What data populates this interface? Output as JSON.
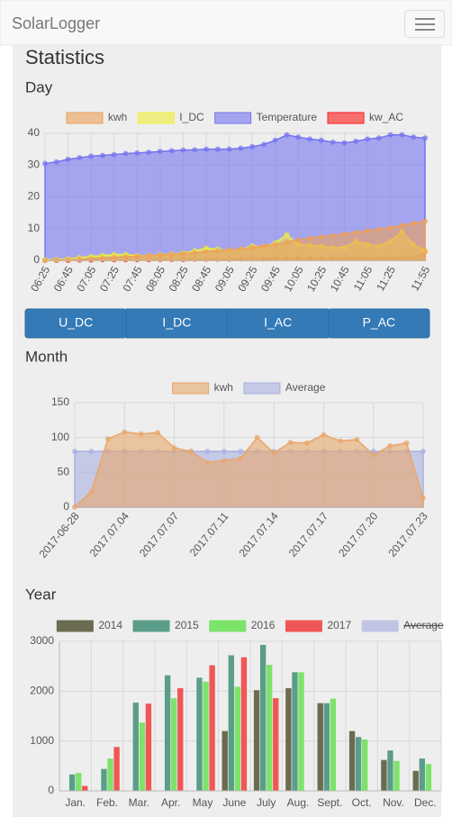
{
  "navbar": {
    "brand": "SolarLogger"
  },
  "heading": "Statistics",
  "buttons": [
    "U_DC",
    "I_DC",
    "I_AC",
    "P_AC"
  ],
  "chart_data": [
    {
      "type": "line",
      "title": "Day",
      "categories": [
        "06:25",
        null,
        "06:45",
        null,
        "07:05",
        null,
        "07:25",
        null,
        "07:45",
        null,
        "08:05",
        null,
        "08:25",
        null,
        "08:45",
        null,
        "09:05",
        null,
        "09:25",
        null,
        "09:45",
        null,
        "10:05",
        null,
        "10:25",
        null,
        "10:45",
        null,
        "11:05",
        null,
        "11:25",
        null,
        null,
        "11:55"
      ],
      "series": [
        {
          "name": "kwh",
          "color": "#eda05a",
          "values": [
            0,
            0.1,
            0.2,
            0.3,
            0.5,
            0.7,
            0.9,
            1.1,
            1.3,
            1.5,
            1.7,
            1.9,
            2.1,
            2.4,
            2.7,
            3,
            3.3,
            3.6,
            4,
            4.5,
            5,
            5.8,
            6.4,
            7,
            7.4,
            7.8,
            8.3,
            8.8,
            9.3,
            9.8,
            10.3,
            11,
            11.7,
            12.3
          ]
        },
        {
          "name": "I_DC",
          "color": "#eeee3c",
          "values": [
            0.2,
            0.3,
            0.5,
            0.8,
            1.2,
            1.5,
            1.8,
            1.8,
            1.5,
            1.5,
            1.8,
            2,
            2.3,
            3,
            3.8,
            3.5,
            3,
            3.5,
            4.5,
            4.3,
            5.5,
            8,
            5,
            4.8,
            4.5,
            4,
            4,
            6,
            5,
            4.5,
            6,
            9,
            5,
            3
          ]
        },
        {
          "name": "Temperature",
          "color": "#7474f0",
          "values": [
            30.5,
            31,
            31.8,
            32.3,
            32.8,
            33,
            33.3,
            33.6,
            33.8,
            34,
            34.3,
            34.5,
            34.7,
            34.8,
            35,
            35,
            35,
            35.3,
            35.8,
            36.5,
            37.8,
            39.5,
            38.8,
            38.2,
            37.8,
            37.2,
            37,
            37.5,
            38.2,
            38.5,
            39.5,
            39.5,
            38.8,
            38.5
          ]
        },
        {
          "name": "kw_AC",
          "color": "#ff1a1a",
          "values": [
            0,
            0,
            0,
            0.1,
            0.1,
            0.2,
            0.2,
            0.2,
            0.2,
            0.2,
            0.3,
            0.3,
            0.3,
            0.4,
            0.4,
            0.4,
            0.4,
            0.5,
            0.5,
            0.5,
            0.6,
            0.6,
            0.6,
            0.6,
            0.6,
            0.6,
            0.7,
            0.7,
            0.7,
            0.7,
            0.8,
            0.8,
            0.8,
            2.8
          ]
        }
      ],
      "ylim": [
        0,
        40
      ],
      "yticks": [
        0,
        10,
        20,
        30,
        40
      ],
      "grid": true
    },
    {
      "type": "line",
      "title": "Month",
      "categories": [
        "2017-06-28",
        null,
        null,
        "2017.07.04",
        null,
        null,
        "2017.07.07",
        null,
        null,
        "2017.07.11",
        null,
        null,
        "2017.07.14",
        null,
        null,
        "2017.07.17",
        null,
        null,
        "2017.07.20",
        null,
        null,
        "2017.07.23"
      ],
      "series": [
        {
          "name": "kwh",
          "color": "#e8a66a",
          "values": [
            0,
            22,
            98,
            108,
            105,
            107,
            85,
            80,
            64,
            67,
            70,
            100,
            78,
            93,
            92,
            104,
            95,
            97,
            75,
            88,
            92,
            13
          ]
        },
        {
          "name": "Average",
          "color": "#aab0e0",
          "values": [
            80,
            80,
            80,
            80,
            80,
            80,
            80,
            80,
            80,
            80,
            80,
            80,
            80,
            80,
            80,
            80,
            80,
            80,
            80,
            80,
            80,
            80
          ]
        }
      ],
      "ylim": [
        0,
        150
      ],
      "yticks": [
        0,
        50,
        100,
        150
      ],
      "grid": true
    },
    {
      "type": "bar",
      "title": "Year",
      "categories": [
        "Jan.",
        "Feb.",
        "Mar.",
        "Apr.",
        "May",
        "June",
        "July",
        "Aug.",
        "Sept.",
        "Oct.",
        "Nov.",
        "Dec."
      ],
      "series": [
        {
          "name": "2014",
          "color": "#6b6b4f",
          "values": [
            null,
            null,
            null,
            null,
            null,
            1200,
            2020,
            2060,
            1760,
            1200,
            620,
            400
          ]
        },
        {
          "name": "2015",
          "color": "#5a9e8a",
          "values": [
            330,
            440,
            1770,
            2320,
            2270,
            2720,
            2930,
            2380,
            1760,
            1080,
            810,
            650
          ]
        },
        {
          "name": "2016",
          "color": "#7ce36a",
          "values": [
            360,
            650,
            1370,
            1860,
            2190,
            2090,
            2530,
            2380,
            1850,
            1030,
            600,
            540
          ]
        },
        {
          "name": "2017",
          "color": "#f05656",
          "values": [
            100,
            880,
            1750,
            2060,
            2520,
            2680,
            1860,
            null,
            null,
            null,
            null,
            null
          ]
        },
        {
          "name": "Average",
          "color": "#c2c4e6",
          "hidden": true
        }
      ],
      "ylim": [
        0,
        3000
      ],
      "yticks": [
        0,
        1000,
        2000,
        3000
      ],
      "grid": true
    }
  ]
}
